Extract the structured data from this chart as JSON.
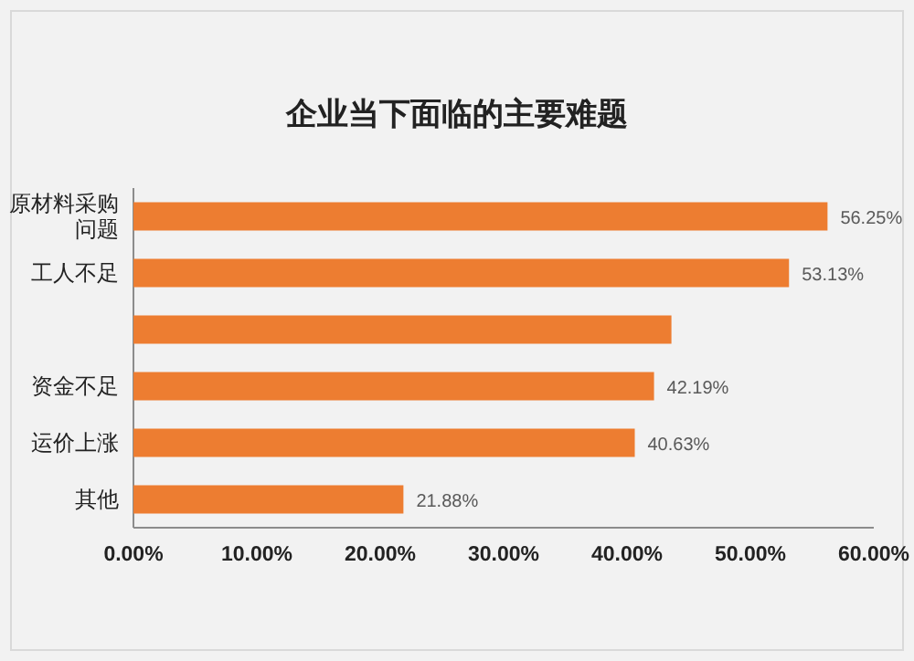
{
  "chart_data": {
    "type": "bar",
    "orientation": "horizontal",
    "title": "企业当下面临的主要难题",
    "categories": [
      "原材料采购问题",
      "工人不足",
      null,
      "资金不足",
      "运价上涨",
      "其他"
    ],
    "values": [
      56.25,
      53.13,
      43.6,
      42.19,
      40.63,
      21.88
    ],
    "value_labels": [
      "56.25%",
      "53.13%",
      null,
      "42.19%",
      "40.63%",
      "21.88%"
    ],
    "color": "#ed7d31",
    "xlim": [
      0,
      60
    ],
    "xticks": [
      {
        "value": 0,
        "label": "0.00%"
      },
      {
        "value": 10,
        "label": "10.00%"
      },
      {
        "value": 20,
        "label": "20.00%"
      },
      {
        "value": 30,
        "label": "30.00%"
      },
      {
        "value": 40,
        "label": "40.00%"
      },
      {
        "value": 50,
        "label": "50.00%"
      },
      {
        "value": 60,
        "label": "60.00%"
      }
    ],
    "grid": false
  }
}
